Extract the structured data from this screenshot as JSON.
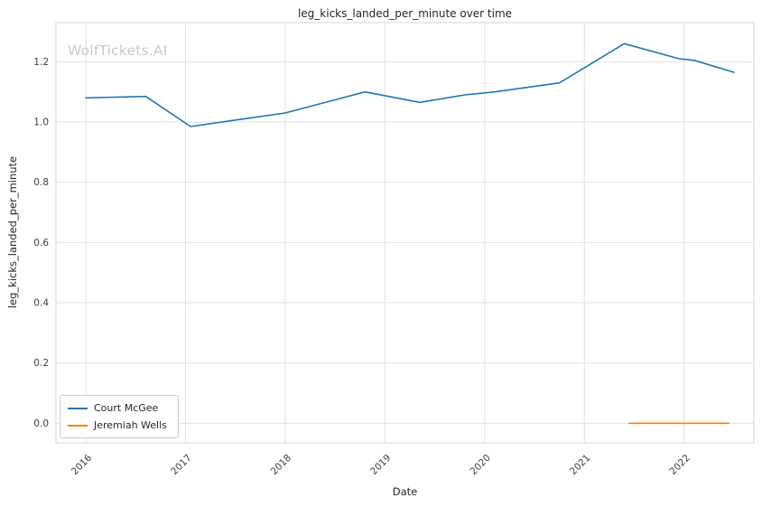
{
  "watermark": {
    "text": "WolfTickets.AI"
  },
  "chart_data": {
    "type": "line",
    "title": "leg_kicks_landed_per_minute over time",
    "xlabel": "Date",
    "ylabel": "leg_kicks_landed_per_minute",
    "xlim": [
      2015.7,
      2022.7
    ],
    "ylim": [
      -0.065,
      1.33
    ],
    "x_ticks": [
      2016,
      2017,
      2018,
      2019,
      2020,
      2021,
      2022
    ],
    "y_ticks": [
      0.0,
      0.2,
      0.4,
      0.6,
      0.8,
      1.0,
      1.2
    ],
    "grid": true,
    "legend_position": "lower left",
    "series": [
      {
        "name": "Court McGee",
        "color": "#1f77b4",
        "x": [
          2016.0,
          2016.6,
          2017.05,
          2018.0,
          2018.8,
          2019.35,
          2019.8,
          2020.1,
          2020.75,
          2021.4,
          2021.95,
          2022.1,
          2022.5
        ],
        "values": [
          1.08,
          1.085,
          0.985,
          1.03,
          1.1,
          1.065,
          1.09,
          1.1,
          1.13,
          1.26,
          1.21,
          1.205,
          1.165
        ]
      },
      {
        "name": "Jeremiah Wells",
        "color": "#ff7f0e",
        "x": [
          2021.45,
          2022.45
        ],
        "values": [
          0.0,
          0.0
        ]
      }
    ]
  }
}
